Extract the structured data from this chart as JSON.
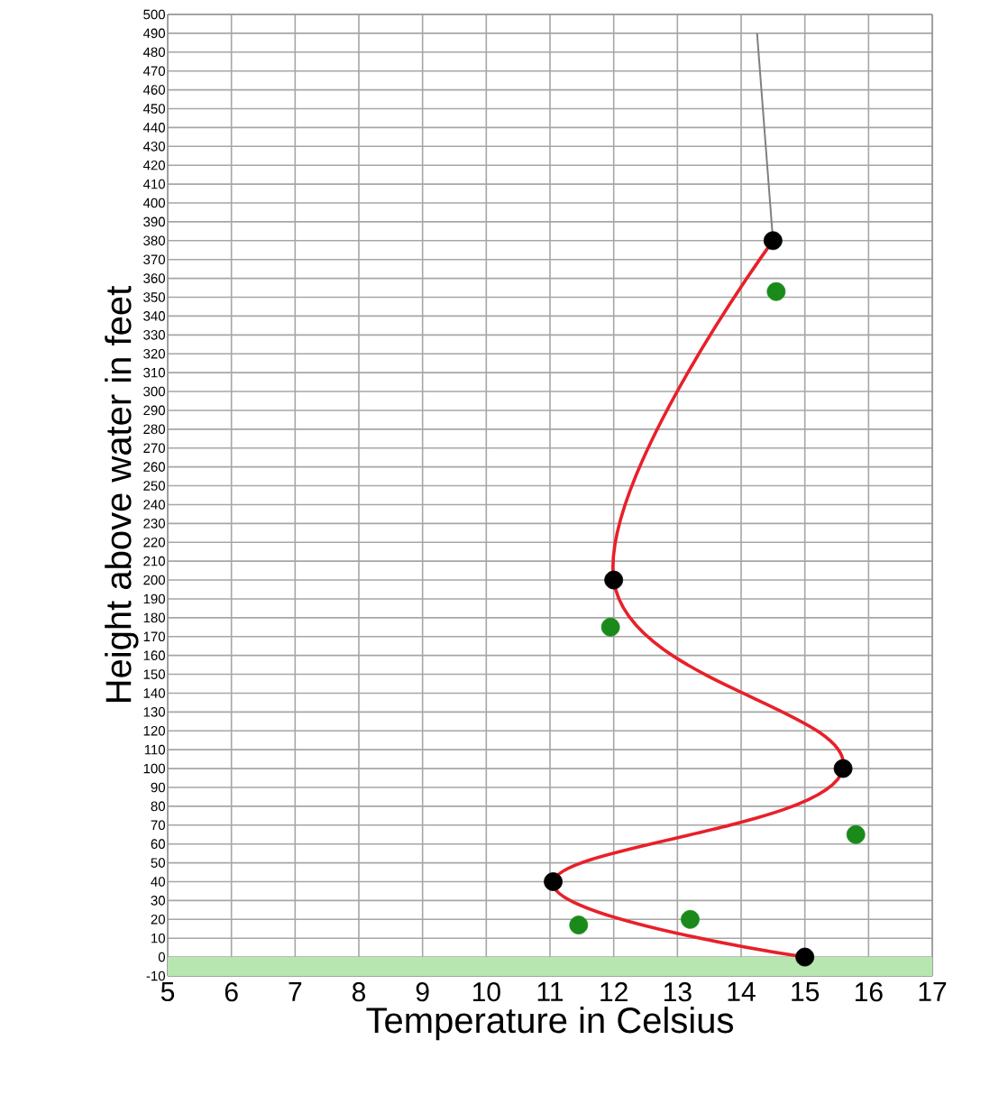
{
  "chart_data": {
    "type": "line",
    "xlabel": "Temperature in Celsius",
    "ylabel": "Height above water in feet",
    "xlim": [
      5,
      17
    ],
    "xticks": [
      5,
      6,
      7,
      8,
      9,
      10,
      11,
      12,
      13,
      14,
      15,
      16,
      17
    ],
    "ylim": [
      -10,
      500
    ],
    "yticks": [
      -10,
      0,
      10,
      20,
      30,
      40,
      50,
      60,
      70,
      80,
      90,
      100,
      110,
      120,
      130,
      140,
      150,
      160,
      170,
      180,
      190,
      200,
      210,
      220,
      230,
      240,
      250,
      260,
      270,
      280,
      290,
      300,
      310,
      320,
      330,
      340,
      350,
      360,
      370,
      380,
      390,
      400,
      410,
      420,
      430,
      440,
      450,
      460,
      470,
      480,
      490,
      500
    ],
    "grid": true,
    "bands": [
      {
        "axis": "y",
        "from": -10,
        "to": 0,
        "color": "#b8e6b0"
      }
    ],
    "series": [
      {
        "color": "#e8202a",
        "x": [
          15,
          11.05,
          15.6,
          12,
          14.5
        ],
        "values": [
          0,
          40,
          100,
          200,
          380
        ]
      },
      {
        "color": "#808080",
        "x": [
          14.5,
          14.25
        ],
        "values": [
          380,
          490
        ]
      },
      {
        "type": "scatter",
        "color": "#000000",
        "x": [
          15,
          11.05,
          15.6,
          12,
          14.5
        ],
        "values": [
          0,
          40,
          100,
          200,
          380
        ]
      },
      {
        "type": "scatter",
        "color": "#1a8a1a",
        "x": [
          11.45,
          13.2,
          15.8,
          11.95,
          14.55
        ],
        "values": [
          17,
          20,
          65,
          175,
          353
        ]
      }
    ]
  }
}
